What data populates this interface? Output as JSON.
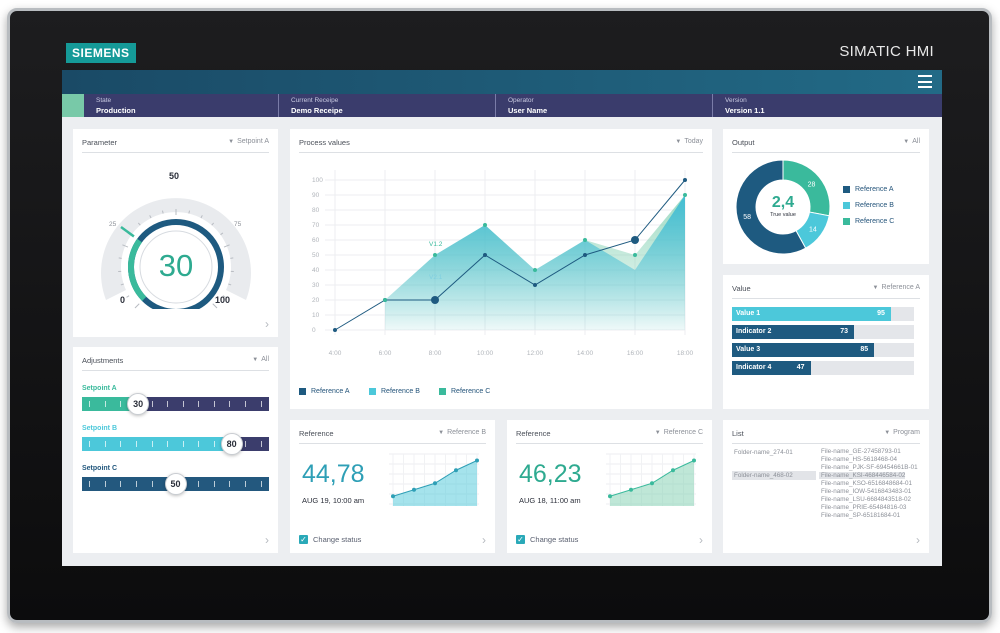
{
  "device": {
    "brand": "SIEMENS",
    "model": "SIMATIC HMI"
  },
  "statusbar": {
    "cells": [
      {
        "label": "State",
        "value": "Production"
      },
      {
        "label": "Current Receipe",
        "value": "Demo Receipe"
      },
      {
        "label": "Operator",
        "value": "User Name"
      },
      {
        "label": "Version",
        "value": "Version 1.1"
      }
    ]
  },
  "parameter": {
    "title": "Parameter",
    "filter": "Setpoint A",
    "value": "30",
    "scale_min": "0",
    "scale_max": "100",
    "scale_mid": "50",
    "tick_25": "25",
    "tick_75": "75",
    "level": 0.3
  },
  "adjustments": {
    "title": "Adjustments",
    "filter": "All",
    "sliders": [
      {
        "name": "Setpoint A",
        "value": "30",
        "color": "#3aba9c",
        "track": "#3b3d6c",
        "level": 0.3
      },
      {
        "name": "Setpoint B",
        "value": "80",
        "color": "#4cc8da",
        "track": "#3b3d6c",
        "level": 0.8
      },
      {
        "name": "Setpoint C",
        "value": "50",
        "color": "#23587e",
        "track": "#23587e",
        "level": 0.5
      }
    ]
  },
  "process": {
    "title": "Process values",
    "filter": "Today",
    "legend": [
      "Reference A",
      "Reference B",
      "Reference C"
    ],
    "legend_colors": [
      "#1e5a80",
      "#4cc8da",
      "#3aba9c"
    ],
    "annotations": [
      "V1.2",
      "V2.1"
    ]
  },
  "chart_data": {
    "type": "line",
    "x": [
      "4:00",
      "6:00",
      "8:00",
      "10:00",
      "12:00",
      "14:00",
      "16:00",
      "18:00"
    ],
    "ylim": [
      0,
      100
    ],
    "yticks": [
      0,
      10,
      20,
      30,
      40,
      50,
      60,
      70,
      80,
      90,
      100
    ],
    "series": [
      {
        "name": "Reference A",
        "values": [
          0,
          20,
          20,
          50,
          30,
          50,
          60,
          100
        ]
      },
      {
        "name": "Reference B",
        "values": [
          null,
          20,
          50,
          70,
          40,
          60,
          40,
          90
        ]
      },
      {
        "name": "Reference C",
        "values": [
          null,
          20,
          50,
          70,
          40,
          60,
          50,
          90
        ]
      }
    ]
  },
  "output": {
    "title": "Output",
    "filter": "All",
    "center_value": "2,4",
    "center_label": "True value",
    "slices": [
      {
        "name": "Reference A",
        "value": 58,
        "color": "#1e5a80"
      },
      {
        "name": "Reference B",
        "value": 14,
        "color": "#4cc8da"
      },
      {
        "name": "Reference C",
        "value": 28,
        "color": "#3aba9c"
      }
    ]
  },
  "value_panel": {
    "title": "Value",
    "filter": "Reference A",
    "bars": [
      {
        "name": "Value 1",
        "value": "95",
        "color": "#4cc8da",
        "level": 0.95
      },
      {
        "name": "Indicator 2",
        "value": "73",
        "color": "#1e5a80",
        "level": 0.73
      },
      {
        "name": "Value 3",
        "value": "85",
        "color": "#1e5a80",
        "level": 0.85
      },
      {
        "name": "Indicator 4",
        "value": "47",
        "color": "#1e5a80",
        "level": 0.47
      }
    ]
  },
  "ref_b": {
    "title": "Reference",
    "filter": "Reference B",
    "value": "44,78",
    "time": "AUG 19, 10:00 am",
    "check": "Change status",
    "color": "#2e9fb6",
    "points": [
      15,
      25,
      35,
      55,
      70
    ]
  },
  "ref_c": {
    "title": "Reference",
    "filter": "Reference C",
    "value": "46,23",
    "time": "AUG 18, 11:00 am",
    "check": "Change status",
    "color": "#3aba9c",
    "points": [
      15,
      25,
      35,
      55,
      70
    ]
  },
  "list": {
    "title": "List",
    "filter": "Program",
    "folders": [
      "Folder-name_274-01",
      "Folder-name_468-02"
    ],
    "files": [
      "File-name_GE-27458793-01",
      "File-name_HS-5618468-04",
      "File-name_PJK-SF-69454661B-01",
      "File-name_KSI-468446584-02",
      "File-name_KSO-6516848684-01",
      "File-name_IOW-5416843483-01",
      "File-name_LSU-6684843518-02",
      "File-name_PRIE-65484816-03",
      "File-name_SP-65181684-01"
    ]
  }
}
